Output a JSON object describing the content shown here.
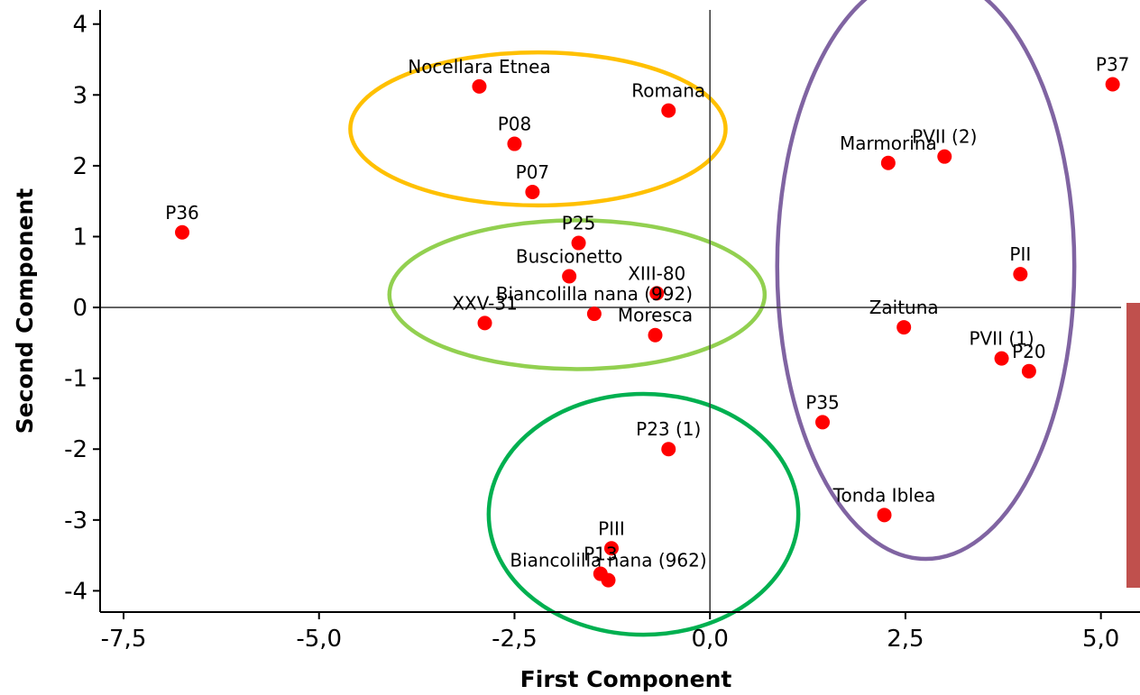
{
  "chart_data": {
    "type": "scatter",
    "title": "",
    "xlabel": "First Component",
    "ylabel": "Second Component",
    "xlim": [
      -7.8,
      5.5
    ],
    "ylim": [
      -4.3,
      4.2
    ],
    "x_ticks": [
      {
        "value": -7.5,
        "label": "-7,5"
      },
      {
        "value": -5.0,
        "label": "-5,0"
      },
      {
        "value": -2.5,
        "label": "-2,5"
      },
      {
        "value": 0.0,
        "label": "0,0"
      },
      {
        "value": 2.5,
        "label": "2,5"
      },
      {
        "value": 5.0,
        "label": "5,0"
      }
    ],
    "y_ticks": [
      {
        "value": 4,
        "label": "4"
      },
      {
        "value": 3,
        "label": "3"
      },
      {
        "value": 2,
        "label": "2"
      },
      {
        "value": 1,
        "label": "1"
      },
      {
        "value": 0,
        "label": "0"
      },
      {
        "value": -1,
        "label": "-1"
      },
      {
        "value": -2,
        "label": "-2"
      },
      {
        "value": -3,
        "label": "-3"
      },
      {
        "value": -4,
        "label": "-4"
      }
    ],
    "point_color": "#ff0000",
    "points": [
      {
        "label": "Nocellara Etnea",
        "x": -2.95,
        "y": 3.12
      },
      {
        "label": "Romana",
        "x": -0.53,
        "y": 2.78
      },
      {
        "label": "P08",
        "x": -2.5,
        "y": 2.31
      },
      {
        "label": "P07",
        "x": -2.27,
        "y": 1.63
      },
      {
        "label": "P36",
        "x": -6.75,
        "y": 1.06
      },
      {
        "label": "P25",
        "x": -1.68,
        "y": 0.91
      },
      {
        "label": "Buscionetto",
        "x": -1.8,
        "y": 0.44
      },
      {
        "label": "XIII-80",
        "x": -0.68,
        "y": 0.2
      },
      {
        "label": "Biancolilla nana (992)",
        "x": -1.48,
        "y": -0.09
      },
      {
        "label": "XXV-31",
        "x": -2.88,
        "y": -0.22
      },
      {
        "label": "Moresca",
        "x": -0.7,
        "y": -0.39
      },
      {
        "label": "P23 (1)",
        "x": -0.53,
        "y": -2.0
      },
      {
        "label": "PIII",
        "x": -1.26,
        "y": -3.4
      },
      {
        "label": "P13",
        "x": -1.4,
        "y": -3.76
      },
      {
        "label": "Biancolilla nana (962)",
        "x": -1.3,
        "y": -3.85
      },
      {
        "label": "P37",
        "x": 5.15,
        "y": 3.15
      },
      {
        "label": "Marmorina",
        "x": 2.28,
        "y": 2.04
      },
      {
        "label": "PVII (2)",
        "x": 3.0,
        "y": 2.13
      },
      {
        "label": "PII",
        "x": 3.97,
        "y": 0.47
      },
      {
        "label": "Zaituna",
        "x": 2.48,
        "y": -0.28
      },
      {
        "label": "PVII (1)",
        "x": 3.73,
        "y": -0.72
      },
      {
        "label": "P20",
        "x": 4.08,
        "y": -0.9
      },
      {
        "label": "P35",
        "x": 1.44,
        "y": -1.62
      },
      {
        "label": "Tonda Iblea",
        "x": 2.23,
        "y": -2.93
      }
    ],
    "groups": [
      {
        "color": "#ffc000",
        "cx": -2.2,
        "cy": 2.52,
        "rx": 2.4,
        "ry": 1.08
      },
      {
        "color": "#92d050",
        "cx": -1.7,
        "cy": 0.18,
        "rx": 2.4,
        "ry": 1.05
      },
      {
        "color": "#00b050",
        "cx": -0.85,
        "cy": -2.92,
        "rx": 1.98,
        "ry": 1.7
      },
      {
        "color": "#8064a2",
        "cx": 2.76,
        "cy": 0.58,
        "rx": 1.9,
        "ry": 4.13
      }
    ],
    "side_bar_color": "#c0504d"
  }
}
